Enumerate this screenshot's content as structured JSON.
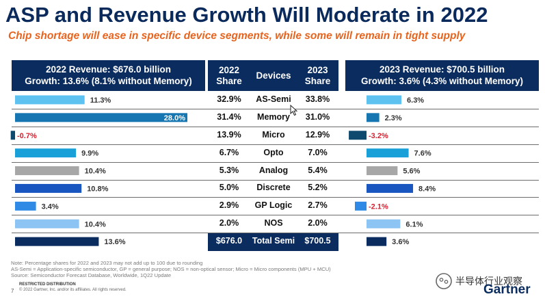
{
  "title": "ASP and Revenue Growth Will Moderate in 2022",
  "subtitle": "Chip shortage will ease in specific device segments, while some will remain in tight supply",
  "header_left": {
    "line1": "2022 Revenue: $676.0 billion",
    "line2": "Growth: 13.6% (8.1% without Memory)"
  },
  "header_middle": {
    "col_2022": [
      "2022",
      "Share"
    ],
    "col_devices": "Devices",
    "col_2023": [
      "2023",
      "Share"
    ]
  },
  "header_right": {
    "line1": "2023 Revenue: $700.5 billion",
    "line2": "Growth: 3.6% (4.3% without Memory)"
  },
  "chart_data": {
    "type": "bar",
    "categories": [
      "AS-Semi",
      "Memory",
      "Micro",
      "Opto",
      "Analog",
      "Discrete",
      "GP Logic",
      "NOS",
      "Total Semi"
    ],
    "colors": [
      "#5ec2f0",
      "#1576b2",
      "#0d4a6e",
      "#1aa0d8",
      "#a7a7a7",
      "#1a56c0",
      "#2f8ae6",
      "#8cc4f4",
      "#0b2c5e"
    ],
    "negative_color": "#d62030",
    "growth_2022": {
      "values": [
        11.3,
        28.0,
        -0.7,
        9.9,
        10.4,
        10.8,
        3.4,
        10.4,
        13.6
      ],
      "labels": [
        "11.3%",
        "28.0%",
        "-0.7%",
        "9.9%",
        "10.4%",
        "10.8%",
        "3.4%",
        "10.4%",
        "13.6%"
      ]
    },
    "growth_2023": {
      "values": [
        6.3,
        2.3,
        -3.2,
        7.6,
        5.6,
        8.4,
        -2.1,
        6.1,
        3.6
      ],
      "labels": [
        "6.3%",
        "2.3%",
        "-3.2%",
        "7.6%",
        "5.6%",
        "8.4%",
        "-2.1%",
        "6.1%",
        "3.6%"
      ]
    },
    "share_2022": [
      "32.9%",
      "31.4%",
      "13.9%",
      "6.7%",
      "5.3%",
      "5.0%",
      "2.9%",
      "2.0%",
      "$676.0"
    ],
    "share_2023": [
      "33.8%",
      "31.0%",
      "12.9%",
      "7.0%",
      "5.4%",
      "5.2%",
      "2.7%",
      "2.0%",
      "$700.5"
    ]
  },
  "footnotes": [
    "Note: Percentage shares for 2022 and 2023 may not add up to 100 due to rounding",
    "AS-Semi = Application-specific semiconductor, GP = general purpose; NOS = non-optical sensor; Micro = Micro components (MPU + MCU)",
    "Source: Semiconductor Forecast Database, Worldwide, 1Q22 Update"
  ],
  "page_number": "7",
  "restricted": "RESTRICTED DISTRIBUTION",
  "copyright": "© 2022 Gartner, Inc. and/or its affiliates. All rights reserved.",
  "watermark": "半导体行业观察",
  "brand": "Gartner"
}
